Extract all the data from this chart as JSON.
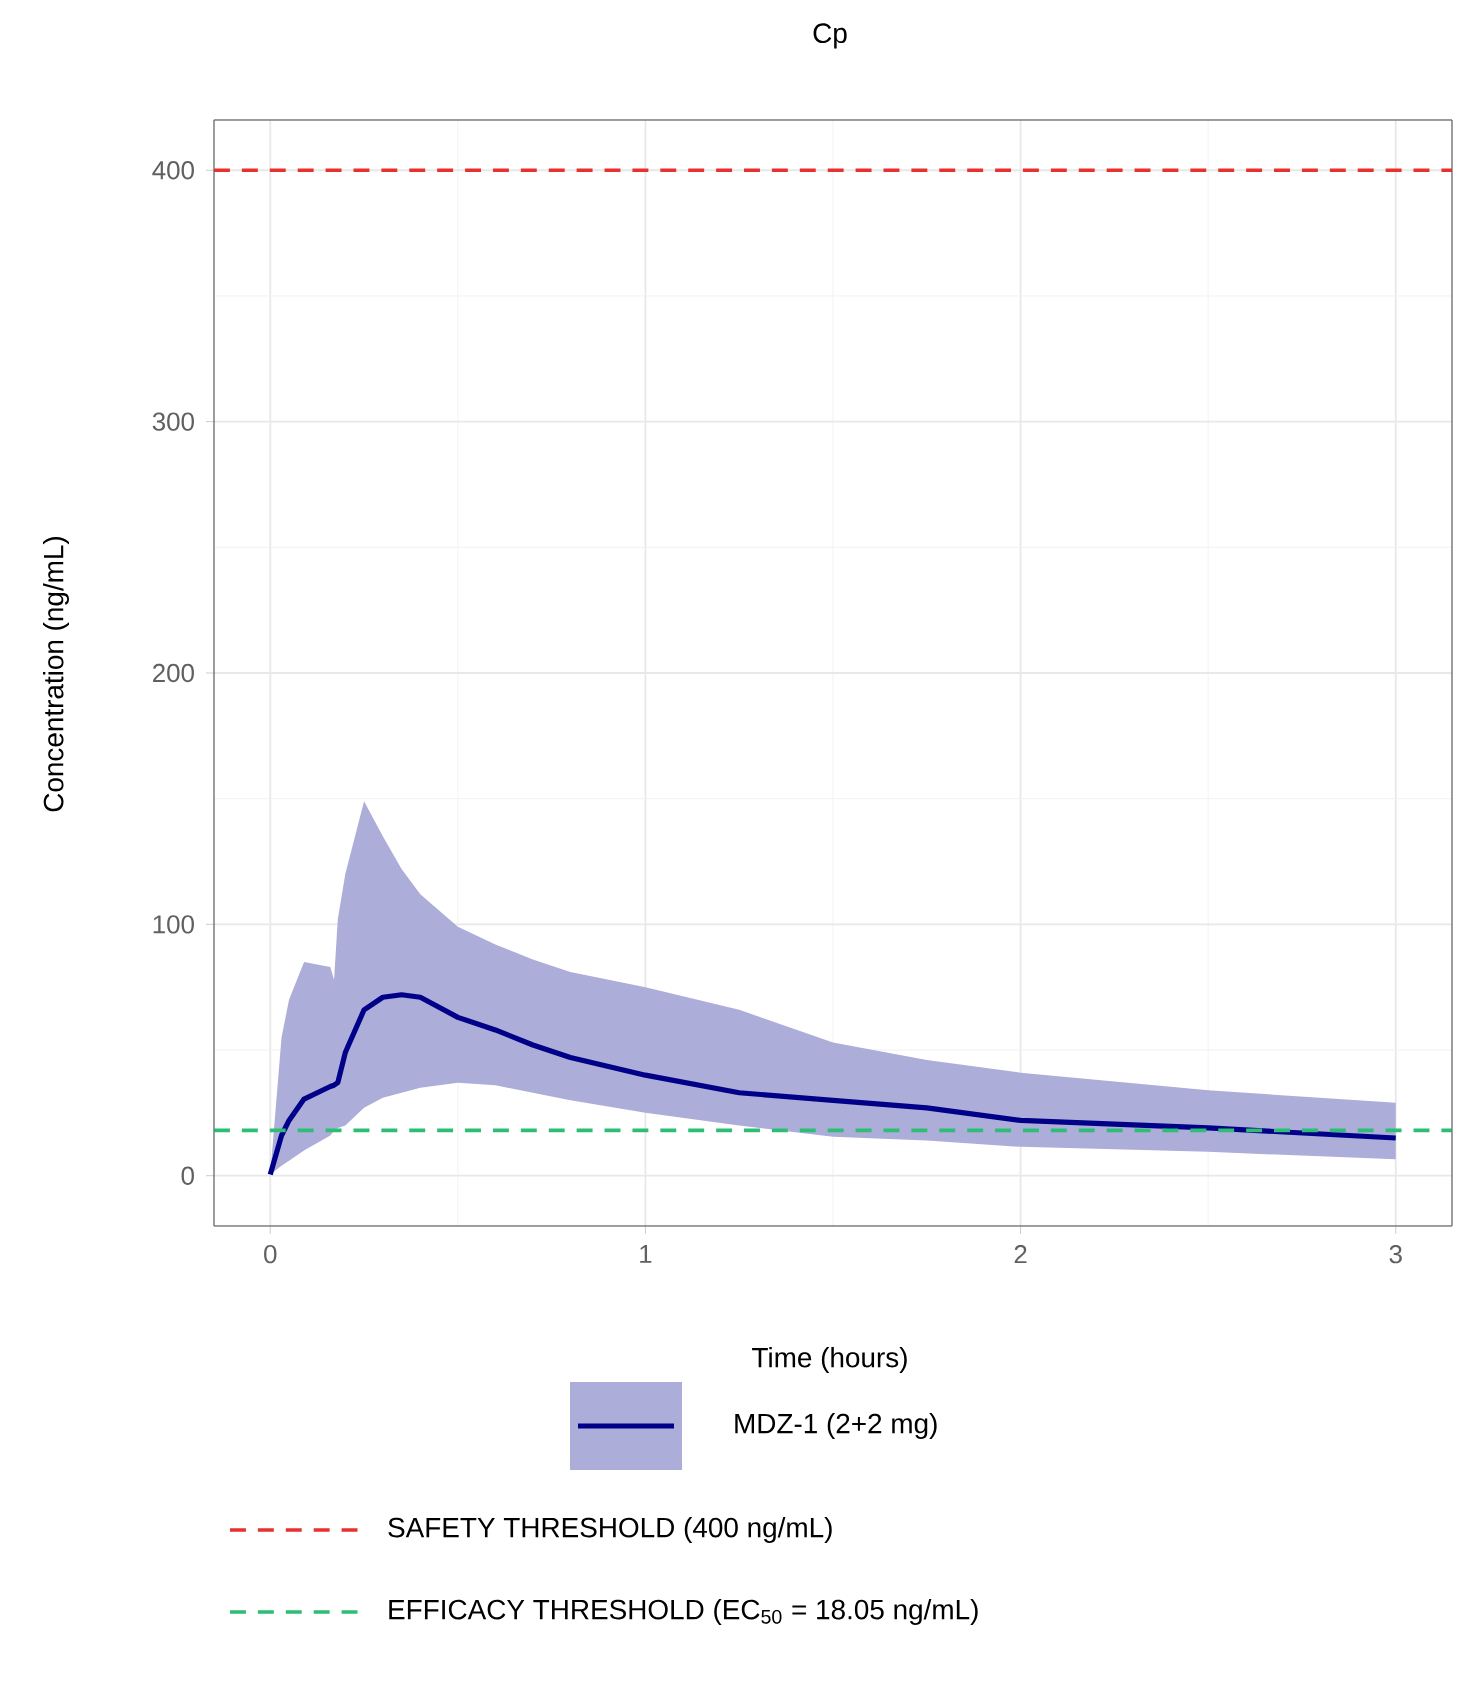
{
  "chart_data": {
    "type": "line",
    "title": "Cp",
    "xlabel": "Time (hours)",
    "ylabel": "Concentration (ng/mL)",
    "x": [
      0,
      0.03,
      0.05,
      0.09,
      0.16,
      0.17,
      0.18,
      0.2,
      0.25,
      0.3,
      0.35,
      0.4,
      0.5,
      0.6,
      0.7,
      0.8,
      1.0,
      1.25,
      1.5,
      1.75,
      2.0,
      2.5,
      3.0
    ],
    "series": [
      {
        "name": "MDZ-1 (2+2 mg)",
        "color": "#000088",
        "values": [
          0.5,
          16,
          22,
          30.5,
          35.5,
          36,
          37,
          49,
          66,
          71,
          72,
          71,
          63,
          58,
          52,
          47,
          40,
          33,
          30,
          27,
          22,
          19,
          15
        ],
        "upper": [
          0.5,
          55,
          70,
          85,
          83,
          78,
          102,
          120,
          149,
          135,
          122,
          112,
          99,
          92,
          86,
          81,
          75,
          66,
          53,
          46,
          41,
          34,
          29
        ],
        "lower": [
          0.5,
          4,
          6,
          10,
          16,
          18,
          19,
          20,
          27,
          31,
          33,
          35,
          37,
          36,
          33,
          30,
          25,
          20,
          15.5,
          14,
          11.5,
          9.5,
          6.5
        ]
      }
    ],
    "xlim": [
      -0.15,
      3.15
    ],
    "ylim": [
      -20,
      420
    ],
    "xticks": [
      0,
      1,
      2,
      3
    ],
    "yticks": [
      0,
      100,
      200,
      300,
      400
    ],
    "ref_lines": [
      {
        "axis": "y",
        "value": 400,
        "label": "SAFETY THRESHOLD (400 ng/mL)",
        "color": "#e8312f",
        "line_style": "dashed"
      },
      {
        "axis": "y",
        "value": 18.05,
        "label": "EFFICACY THRESHOLD (EC$_{50}$ = 18.05 ng/mL)",
        "color": "#2ebd74",
        "line_style": "dashed"
      }
    ],
    "grid": true,
    "legend": "bottom"
  }
}
